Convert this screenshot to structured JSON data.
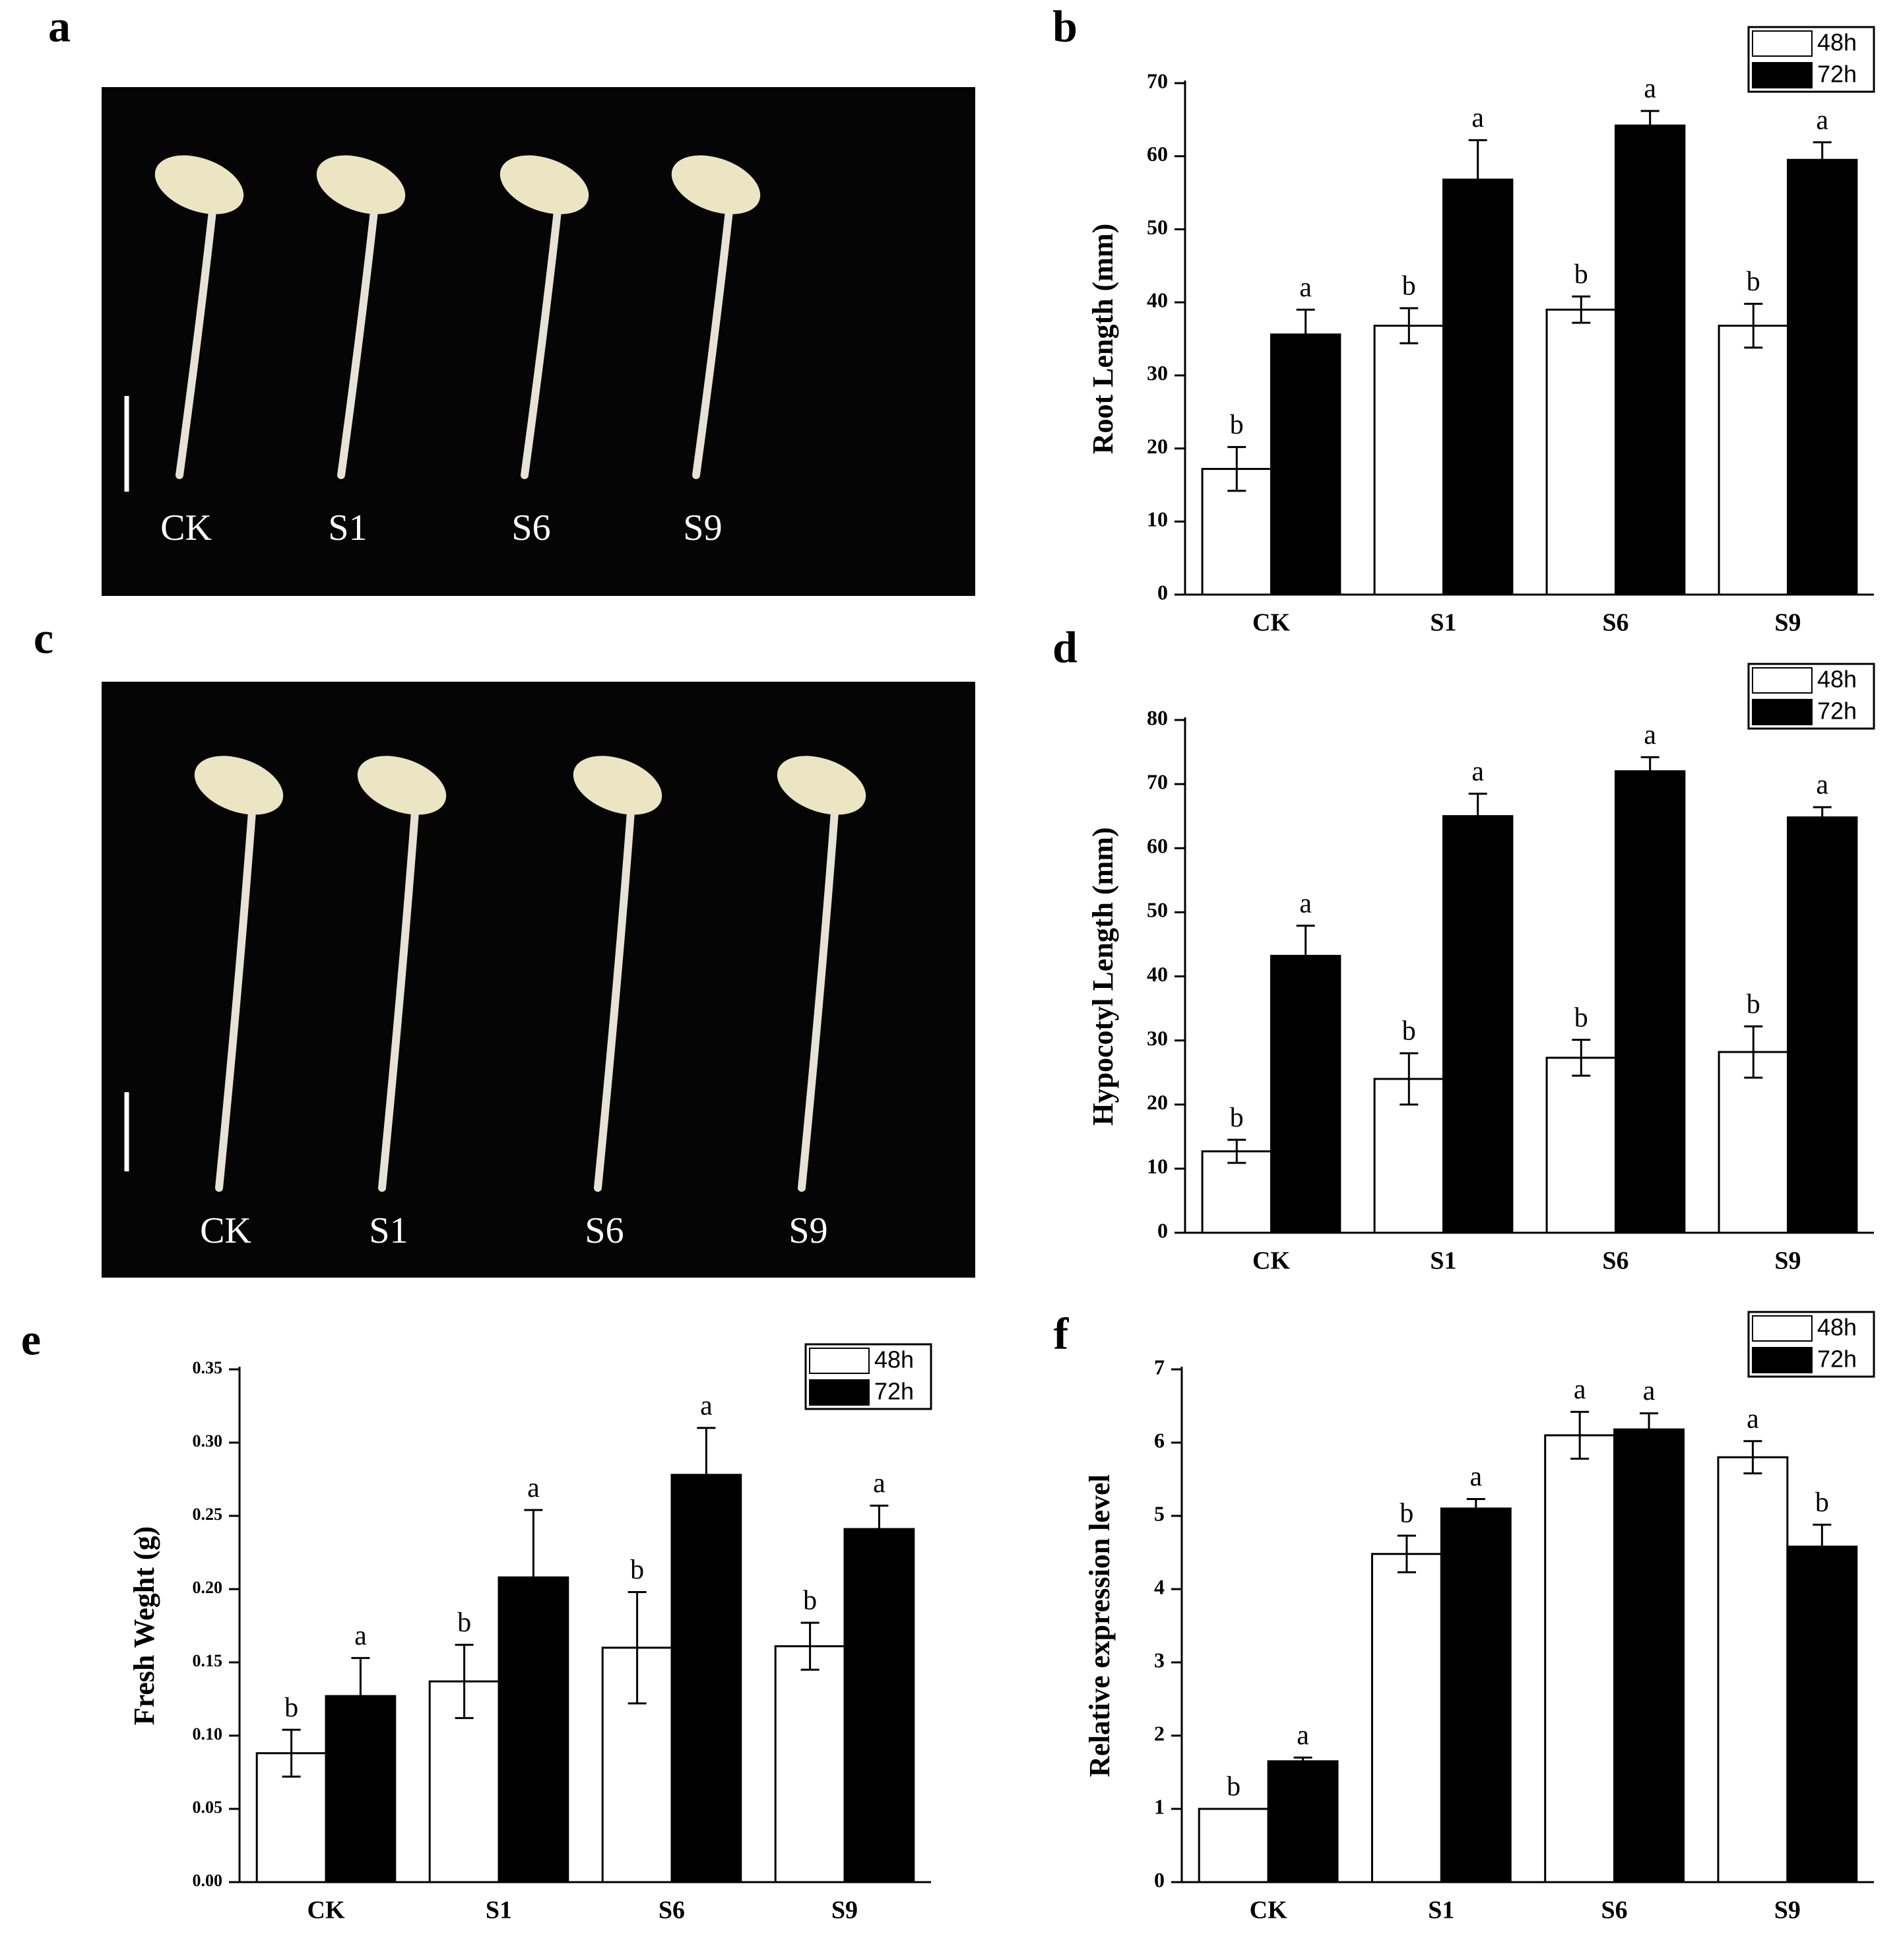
{
  "photos": [
    {
      "panel": "a",
      "captions": [
        "CK",
        "S1",
        "S6",
        "S9"
      ]
    },
    {
      "panel": "c",
      "captions": [
        "CK",
        "S1",
        "S6",
        "S9"
      ]
    }
  ],
  "chart_data": [
    {
      "type": "bar",
      "panel": "b",
      "ylabel": "Root Length (mm)",
      "categories": [
        "CK",
        "S1",
        "S6",
        "S9"
      ],
      "series": [
        {
          "name": "48h",
          "color": "#ffffff",
          "values": [
            17.2,
            36.8,
            39,
            36.8
          ],
          "errors": [
            3,
            2.4,
            1.8,
            3
          ],
          "letters": [
            "b",
            "b",
            "b",
            "b"
          ]
        },
        {
          "name": "72h",
          "color": "#000000",
          "values": [
            35.6,
            56.8,
            64.2,
            59.5
          ],
          "errors": [
            3.4,
            5.4,
            2,
            2.4
          ],
          "letters": [
            "a",
            "a",
            "a",
            "a"
          ]
        }
      ],
      "ylim": [
        0,
        70
      ],
      "yticks": [
        0,
        10,
        20,
        30,
        40,
        50,
        60,
        70
      ],
      "legend": "upper right"
    },
    {
      "type": "bar",
      "panel": "d",
      "ylabel": "Hypocotyl Length (mm)",
      "categories": [
        "CK",
        "S1",
        "S6",
        "S9"
      ],
      "series": [
        {
          "name": "48h",
          "color": "#ffffff",
          "values": [
            12.7,
            24,
            27.3,
            28.2
          ],
          "errors": [
            1.8,
            4,
            2.8,
            4
          ],
          "letters": [
            "b",
            "b",
            "b",
            "b"
          ]
        },
        {
          "name": "72h",
          "color": "#000000",
          "values": [
            43.2,
            65,
            72,
            64.8
          ],
          "errors": [
            4.7,
            3.5,
            2.2,
            1.6
          ],
          "letters": [
            "a",
            "a",
            "a",
            "a"
          ]
        }
      ],
      "ylim": [
        0,
        80
      ],
      "yticks": [
        0,
        10,
        20,
        30,
        40,
        50,
        60,
        70,
        80
      ],
      "legend": "upper right"
    },
    {
      "type": "bar",
      "panel": "e",
      "ylabel": "Fresh Weght (g)",
      "categories": [
        "CK",
        "S1",
        "S6",
        "S9"
      ],
      "series": [
        {
          "name": "48h",
          "color": "#ffffff",
          "values": [
            0.088,
            0.137,
            0.16,
            0.161
          ],
          "errors": [
            0.016,
            0.025,
            0.038,
            0.016
          ],
          "letters": [
            "b",
            "b",
            "b",
            "b"
          ]
        },
        {
          "name": "72h",
          "color": "#000000",
          "values": [
            0.127,
            0.208,
            0.278,
            0.241
          ],
          "errors": [
            0.026,
            0.046,
            0.032,
            0.016
          ],
          "letters": [
            "a",
            "a",
            "a",
            "a"
          ]
        }
      ],
      "ylim": [
        0,
        0.35
      ],
      "yticks": [
        {
          "value": 0,
          "label": "0.00"
        },
        0.05,
        {
          "value": 0.1,
          "label": "0.10"
        },
        0.15,
        {
          "value": 0.2,
          "label": "0.20"
        },
        0.25,
        {
          "value": 0.3,
          "label": "0.30"
        },
        0.35
      ],
      "legend": "upper right"
    },
    {
      "type": "bar",
      "panel": "f",
      "ylabel": "Relative expression level",
      "categories": [
        "CK",
        "S1",
        "S6",
        "S9"
      ],
      "series": [
        {
          "name": "48h",
          "color": "#ffffff",
          "values": [
            1,
            4.48,
            6.1,
            5.8
          ],
          "errors": [
            0,
            0.25,
            0.32,
            0.22
          ],
          "letters": [
            "b",
            "b",
            "a",
            "a"
          ]
        },
        {
          "name": "72h",
          "color": "#000000",
          "values": [
            1.65,
            5.1,
            6.18,
            4.58
          ],
          "errors": [
            0.05,
            0.13,
            0.22,
            0.3
          ],
          "letters": [
            "a",
            "a",
            "a",
            "b"
          ]
        }
      ],
      "ylim": [
        0,
        7
      ],
      "yticks": [
        0,
        1,
        2,
        3,
        4,
        5,
        6,
        7
      ],
      "legend": "upper right"
    }
  ]
}
